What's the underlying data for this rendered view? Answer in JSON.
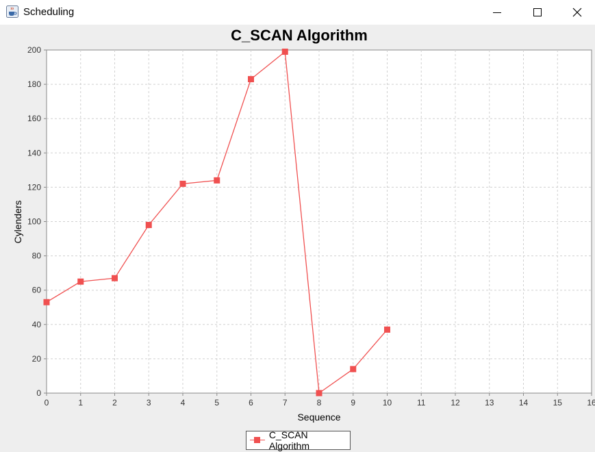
{
  "window": {
    "title": "Scheduling",
    "icon": "java-cup-icon",
    "controls": [
      "minimize-icon",
      "maximize-icon",
      "close-icon"
    ]
  },
  "chart_data": {
    "type": "line",
    "title": "C_SCAN Algorithm",
    "xlabel": "Sequence",
    "ylabel": "Cylenders",
    "xlim": [
      0,
      16
    ],
    "ylim": [
      0,
      200
    ],
    "x_ticks": [
      "0",
      "1",
      "2",
      "3",
      "4",
      "5",
      "6",
      "7",
      "8",
      "9",
      "10",
      "11",
      "12",
      "13",
      "14",
      "15",
      "16"
    ],
    "y_ticks": [
      "0",
      "20",
      "40",
      "60",
      "80",
      "100",
      "120",
      "140",
      "160",
      "180",
      "200"
    ],
    "grid": true,
    "legend_position": "bottom-center",
    "series": [
      {
        "name": "C_SCAN Algorithm",
        "color": "#f05050",
        "marker": "square",
        "x": [
          0,
          1,
          2,
          3,
          4,
          5,
          6,
          7,
          8,
          9,
          10
        ],
        "y": [
          53,
          65,
          67,
          98,
          122,
          124,
          183,
          199,
          0,
          14,
          37
        ]
      }
    ]
  }
}
